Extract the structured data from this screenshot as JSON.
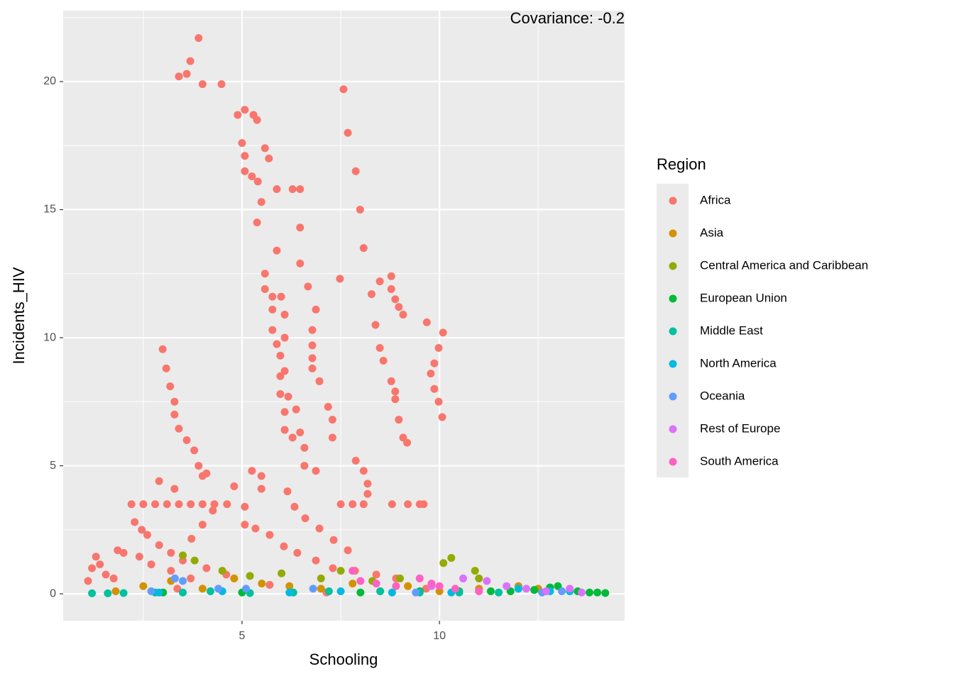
{
  "chart_data": {
    "type": "scatter",
    "annotation": "Covariance: -0.2",
    "x_label": "Schooling",
    "y_label": "Incidents_HIV",
    "legend_title": "Region",
    "xlim": [
      0.47,
      14.69
    ],
    "ylim": [
      -1.05,
      22.77
    ],
    "xticks": [
      5,
      10
    ],
    "yticks": [
      0,
      5,
      10,
      15,
      20
    ],
    "minor_xticks": [
      2.5,
      7.5,
      12.5
    ],
    "minor_yticks": [
      2.5,
      7.5,
      12.5,
      17.5,
      22.5
    ],
    "grid": true,
    "legend": "right",
    "series": [
      {
        "name": "Africa",
        "color": "#F8766D",
        "x": [
          3.9,
          3.69,
          3.4,
          3.6,
          4.0,
          4.48,
          5.07,
          4.89,
          5.29,
          5.38,
          5.0,
          5.07,
          5.58,
          5.68,
          5.07,
          5.25,
          5.4,
          5.88,
          6.28,
          6.47,
          5.49,
          5.38,
          6.47,
          5.88,
          6.47,
          5.58,
          5.58,
          5.77,
          5.99,
          6.67,
          6.87,
          6.08,
          5.77,
          5.77,
          6.08,
          6.78,
          6.78,
          5.88,
          5.97,
          6.78,
          6.78,
          6.08,
          5.97,
          6.96,
          5.97,
          6.17,
          6.37,
          7.18,
          6.08,
          7.29,
          6.08,
          6.47,
          6.28,
          6.58,
          7.29,
          6.58,
          6.87,
          7.57,
          7.68,
          7.88,
          7.99,
          8.08,
          7.48,
          8.28,
          8.49,
          8.78,
          8.78,
          8.88,
          8.97,
          9.08,
          8.38,
          8.49,
          8.58,
          8.78,
          8.88,
          8.88,
          8.97,
          9.08,
          9.18,
          9.68,
          10.09,
          9.98,
          9.87,
          9.78,
          9.87,
          9.98,
          10.07,
          7.88,
          8.08,
          8.18,
          8.18,
          8.08,
          7.5,
          7.8,
          8.8,
          9.2,
          9.5,
          9.6,
          2.99,
          3.08,
          3.18,
          3.29,
          3.29,
          3.4,
          3.6,
          3.79,
          3.9,
          4.0,
          4.1,
          2.9,
          3.29,
          2.2,
          2.5,
          2.8,
          3.1,
          3.4,
          3.7,
          4.0,
          4.3,
          2.28,
          2.46,
          2.6,
          2.9,
          3.2,
          3.5,
          4.1,
          4.6,
          1.85,
          2.0,
          2.4,
          2.7,
          3.2,
          3.7,
          1.3,
          1.4,
          1.2,
          1.1,
          1.55,
          1.75,
          5.25,
          5.49,
          5.49,
          5.07,
          5.07,
          5.34,
          5.7,
          6.06,
          6.4,
          6.87,
          7.3,
          7.86,
          8.4,
          8.9,
          6.15,
          6.33,
          6.6,
          6.96,
          7.32,
          7.68,
          4.8,
          4.62,
          4.26,
          4.0,
          3.72,
          7.14,
          9.66,
          5.7,
          3.36
        ],
        "values": [
          21.7,
          20.8,
          20.2,
          20.3,
          19.9,
          19.9,
          18.9,
          18.7,
          18.7,
          18.5,
          17.6,
          17.1,
          17.4,
          17.0,
          16.5,
          16.3,
          16.1,
          15.8,
          15.8,
          15.8,
          15.3,
          14.5,
          14.3,
          13.4,
          12.9,
          12.5,
          11.9,
          11.6,
          11.6,
          12.0,
          11.1,
          10.9,
          11.1,
          10.3,
          10.0,
          10.3,
          9.7,
          9.75,
          9.3,
          9.2,
          8.8,
          8.7,
          8.5,
          8.3,
          7.8,
          7.7,
          7.2,
          7.3,
          7.1,
          6.8,
          6.4,
          6.3,
          6.1,
          5.7,
          6.1,
          5.0,
          4.8,
          19.7,
          18.0,
          16.5,
          15.0,
          13.5,
          12.3,
          11.7,
          12.2,
          12.4,
          11.9,
          11.5,
          11.2,
          10.9,
          10.5,
          9.6,
          9.1,
          8.3,
          7.9,
          7.6,
          6.8,
          6.1,
          5.9,
          10.6,
          10.2,
          9.6,
          9.0,
          8.6,
          8.0,
          7.5,
          6.9,
          5.2,
          4.8,
          4.3,
          3.9,
          3.5,
          3.5,
          3.5,
          3.5,
          3.5,
          3.5,
          3.5,
          9.55,
          8.8,
          8.1,
          7.5,
          7.0,
          6.45,
          6.0,
          5.6,
          5.0,
          4.6,
          4.7,
          4.4,
          4.1,
          3.5,
          3.5,
          3.5,
          3.5,
          3.5,
          3.5,
          3.5,
          3.5,
          2.8,
          2.5,
          2.3,
          1.9,
          1.6,
          1.3,
          1.0,
          0.75,
          1.7,
          1.6,
          1.45,
          1.15,
          0.9,
          0.6,
          1.45,
          1.15,
          1.0,
          0.5,
          0.75,
          0.6,
          4.8,
          4.6,
          4.1,
          3.4,
          2.7,
          2.55,
          2.3,
          1.85,
          1.6,
          1.3,
          1.0,
          0.9,
          0.75,
          0.6,
          4.0,
          3.4,
          2.95,
          2.55,
          2.1,
          1.7,
          4.2,
          3.5,
          3.25,
          2.7,
          2.15,
          0.05,
          0.2,
          0.35,
          0.2
        ]
      },
      {
        "name": "Asia",
        "color": "#D39200",
        "x": [
          1.8,
          2.5,
          3.2,
          4.0,
          4.8,
          5.5,
          6.2,
          7.0,
          7.8,
          8.5,
          9.2,
          10.0,
          11.0,
          12.0,
          12.5
        ],
        "values": [
          0.1,
          0.3,
          0.5,
          0.2,
          0.6,
          0.4,
          0.3,
          0.2,
          0.4,
          0.1,
          0.3,
          0.1,
          0.2,
          0.3,
          0.2
        ]
      },
      {
        "name": "Central America and Caribbean",
        "color": "#93AA00",
        "x": [
          3.5,
          3.8,
          4.5,
          5.2,
          6.0,
          7.0,
          7.5,
          8.3,
          9.0,
          10.1,
          10.3,
          10.9,
          11.0,
          12.0
        ],
        "values": [
          1.5,
          1.3,
          0.9,
          0.7,
          0.8,
          0.6,
          0.9,
          0.5,
          0.6,
          1.2,
          1.4,
          0.9,
          0.6,
          0.2
        ]
      },
      {
        "name": "European Union",
        "color": "#00BA38",
        "x": [
          9.5,
          10.5,
          11.3,
          11.8,
          12.4,
          12.8,
          13.0,
          13.5,
          13.8,
          14.0,
          14.2,
          8.0,
          5.0,
          3.0
        ],
        "values": [
          0.1,
          0.1,
          0.1,
          0.1,
          0.15,
          0.25,
          0.3,
          0.1,
          0.05,
          0.05,
          0.03,
          0.05,
          0.05,
          0.05
        ]
      },
      {
        "name": "Middle East",
        "color": "#00C19F",
        "x": [
          1.2,
          1.6,
          2.0,
          2.8,
          3.5,
          4.2,
          5.2,
          6.3,
          7.2,
          8.5,
          9.5,
          10.5,
          11.5
        ],
        "values": [
          0.02,
          0.02,
          0.03,
          0.05,
          0.05,
          0.1,
          0.03,
          0.05,
          0.1,
          0.1,
          0.05,
          0.05,
          0.05
        ]
      },
      {
        "name": "North America",
        "color": "#00B9E3",
        "x": [
          2.9,
          4.5,
          6.2,
          7.5,
          8.8,
          10.3,
          12.0,
          12.8,
          13.3
        ],
        "values": [
          0.05,
          0.1,
          0.05,
          0.1,
          0.05,
          0.05,
          0.2,
          0.1,
          0.1
        ]
      },
      {
        "name": "Oceania",
        "color": "#619CFF",
        "x": [
          2.7,
          3.3,
          3.5,
          4.4,
          5.1,
          6.8,
          9.4,
          12.6,
          13.1
        ],
        "values": [
          0.1,
          0.6,
          0.5,
          0.2,
          0.2,
          0.2,
          0.05,
          0.05,
          0.1
        ]
      },
      {
        "name": "Rest of Europe",
        "color": "#DB72FB",
        "x": [
          9.8,
          10.6,
          11.2,
          11.7,
          12.2,
          12.7,
          13.3,
          13.6
        ],
        "values": [
          0.3,
          0.6,
          0.5,
          0.3,
          0.2,
          0.1,
          0.2,
          0.05
        ]
      },
      {
        "name": "South America",
        "color": "#FF61C3",
        "x": [
          7.8,
          8.0,
          8.4,
          8.9,
          9.5,
          9.8,
          10.0,
          10.4,
          11.0
        ],
        "values": [
          0.9,
          0.5,
          0.4,
          0.3,
          0.6,
          0.4,
          0.3,
          0.2,
          0.1
        ]
      }
    ]
  }
}
